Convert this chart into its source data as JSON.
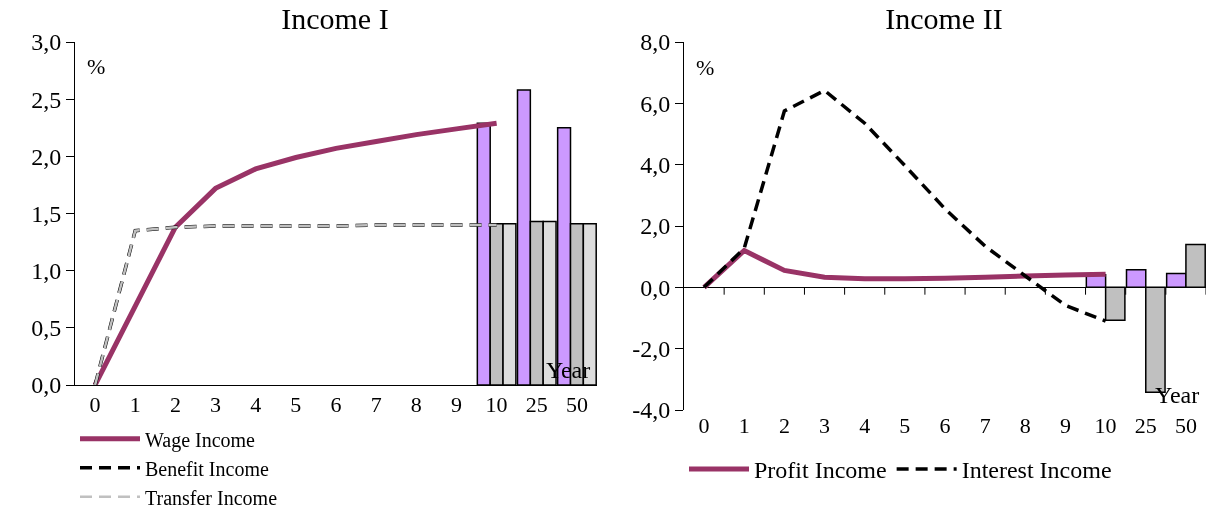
{
  "chart_data": [
    {
      "type": "line",
      "title": "Income I",
      "xlabel": "Year",
      "ylabel": "%",
      "categories": [
        "0",
        "1",
        "2",
        "3",
        "4",
        "5",
        "6",
        "7",
        "8",
        "9",
        "10",
        "25",
        "50"
      ],
      "series": [
        {
          "name": "Wage Income",
          "color": "#993366",
          "line_style": "solid",
          "values": [
            0,
            0.69,
            1.38,
            1.72,
            1.89,
            1.99,
            2.07,
            2.13,
            2.19,
            2.24,
            2.29,
            null,
            null
          ]
        },
        {
          "name": "Benefit Income",
          "color": "#000000",
          "line_style": "dashed",
          "values": [
            0,
            1.35,
            1.38,
            1.39,
            1.39,
            1.39,
            1.39,
            1.4,
            1.4,
            1.4,
            1.4,
            null,
            null
          ]
        },
        {
          "name": "Transfer Income",
          "color": "#c0c0c0",
          "line_style": "dashed",
          "values": [
            0,
            1.35,
            1.38,
            1.39,
            1.39,
            1.39,
            1.39,
            1.4,
            1.4,
            1.4,
            1.4,
            null,
            null
          ]
        },
        {
          "type": "bar",
          "color": "#cc99ff",
          "values": [
            null,
            null,
            null,
            null,
            null,
            null,
            null,
            null,
            null,
            null,
            2.29,
            2.58,
            2.25
          ]
        },
        {
          "type": "bar",
          "color": "#c0c0c0",
          "values": [
            null,
            null,
            null,
            null,
            null,
            null,
            null,
            null,
            null,
            null,
            1.41,
            1.43,
            1.41
          ]
        },
        {
          "type": "bar",
          "color": "#dddddd",
          "values": [
            null,
            null,
            null,
            null,
            null,
            null,
            null,
            null,
            null,
            null,
            1.41,
            1.43,
            1.41
          ]
        }
      ],
      "ylim": [
        0,
        3
      ],
      "yticks": [
        {
          "value": 0,
          "label": "0,0"
        },
        {
          "value": 0.5,
          "label": "0,5"
        },
        {
          "value": 1,
          "label": "1,0"
        },
        {
          "value": 1.5,
          "label": "1,5"
        },
        {
          "value": 2,
          "label": "2,0"
        },
        {
          "value": 2.5,
          "label": "2,5"
        },
        {
          "value": 3,
          "label": "3,0"
        }
      ],
      "legend": "bottom"
    },
    {
      "type": "line",
      "title": "Income II",
      "xlabel": "Year",
      "ylabel": "%",
      "categories": [
        "0",
        "1",
        "2",
        "3",
        "4",
        "5",
        "6",
        "7",
        "8",
        "9",
        "10",
        "25",
        "50"
      ],
      "series": [
        {
          "name": "Profit Income",
          "color": "#993366",
          "line_style": "solid",
          "values": [
            0,
            1.2,
            0.55,
            0.33,
            0.28,
            0.28,
            0.3,
            0.33,
            0.37,
            0.4,
            0.43,
            null,
            null
          ]
        },
        {
          "name": "Interest Income",
          "color": "#000000",
          "line_style": "dashed",
          "values": [
            0,
            1.27,
            5.75,
            6.42,
            5.35,
            3.97,
            2.56,
            1.34,
            0.37,
            -0.59,
            -1.1,
            null,
            null
          ]
        },
        {
          "type": "bar",
          "color": "#cc99ff",
          "values": [
            null,
            null,
            null,
            null,
            null,
            null,
            null,
            null,
            null,
            null,
            0.41,
            0.57,
            0.45
          ]
        },
        {
          "type": "bar",
          "color": "#c0c0c0",
          "values": [
            null,
            null,
            null,
            null,
            null,
            null,
            null,
            null,
            null,
            null,
            -1.07,
            -3.42,
            1.4
          ]
        }
      ],
      "ylim": [
        -4,
        8
      ],
      "yticks": [
        {
          "value": -4,
          "label": "-4,0"
        },
        {
          "value": -2,
          "label": "-2,0"
        },
        {
          "value": 0,
          "label": "0,0"
        },
        {
          "value": 2,
          "label": "2,0"
        },
        {
          "value": 4,
          "label": "4,0"
        },
        {
          "value": 6,
          "label": "6,0"
        },
        {
          "value": 8,
          "label": "8,0"
        }
      ],
      "legend": "bottom"
    }
  ]
}
